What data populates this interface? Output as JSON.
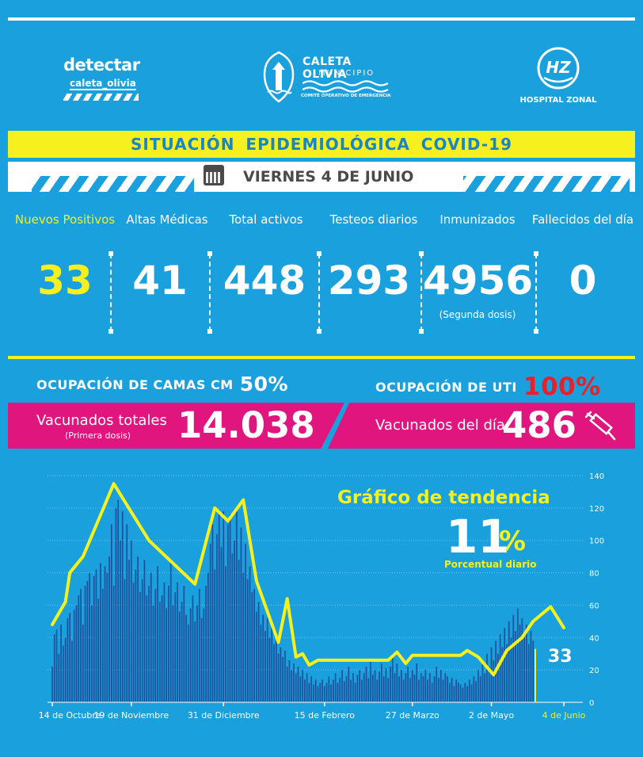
{
  "logos": {
    "detectar_main": "detectar",
    "detectar_sub": "caleta_olivia",
    "caleta_name": "CALETA OLIVIA",
    "caleta_sub": "MUNICIPIO",
    "caleta_committee": "COMITÉ OPERATIVO DE EMERGENCIA",
    "hospital": "HOSPITAL ZONAL"
  },
  "header": {
    "title": "SITUACIÓN EPIDEMIOLÓGICA COVID-19",
    "date": "VIERNES 4 DE JUNIO"
  },
  "stats": [
    {
      "label": "Nuevos Positivos",
      "value": "33"
    },
    {
      "label": "Altas Médicas",
      "value": "41"
    },
    {
      "label": "Total activos",
      "value": "448"
    },
    {
      "label": "Testeos diarios",
      "value": "293"
    },
    {
      "label": "Inmunizados",
      "value": "4956",
      "note": "(Segunda dosis)"
    },
    {
      "label": "Fallecidos del día",
      "value": "0"
    }
  ],
  "occupancy": {
    "camas_label": "OCUPACIÓN DE CAMAS CM",
    "camas_value": "50%",
    "uti_label": "OCUPACIÓN DE UTI",
    "uti_value": "100%"
  },
  "vaccines": {
    "total_label": "Vacunados totales",
    "total_note": "(Primera dosis)",
    "total_value": "14.038",
    "day_label": "Vacunados del día",
    "day_value": "486"
  },
  "colors": {
    "background": "#1aa0dc",
    "yellow": "#f5f01e",
    "pink": "#e0157e",
    "red": "#e8202a",
    "bars": "#1d4f9a",
    "trend": "#f5f01e"
  },
  "chart_data": {
    "type": "bar",
    "title": "Gráfico de tendencia",
    "trend_value": "11",
    "trend_unit": "%",
    "trend_sub": "Porcentual diario",
    "last_value_label": "33",
    "ylim": [
      0,
      140
    ],
    "yticks": [
      0,
      20,
      40,
      60,
      80,
      100,
      120,
      140
    ],
    "xticks": [
      {
        "label": "14 de Octubre",
        "day": 0
      },
      {
        "label": "19 de Noviembre",
        "day": 36
      },
      {
        "label": "31 de Diciembre",
        "day": 78
      },
      {
        "label": "15 de Febrero",
        "day": 124
      },
      {
        "label": "27 de Marzo",
        "day": 164
      },
      {
        "label": "2 de Mayo",
        "day": 200
      },
      {
        "label": "4 de Junio",
        "day": 233,
        "highlight": true
      }
    ],
    "daily_cases": [
      22,
      42,
      45,
      30,
      48,
      35,
      40,
      52,
      55,
      38,
      57,
      60,
      66,
      70,
      48,
      72,
      75,
      80,
      60,
      78,
      82,
      64,
      86,
      70,
      84,
      80,
      90,
      110,
      72,
      120,
      125,
      100,
      118,
      76,
      110,
      88,
      100,
      74,
      82,
      90,
      68,
      76,
      88,
      66,
      72,
      80,
      60,
      70,
      84,
      62,
      66,
      74,
      58,
      72,
      86,
      60,
      68,
      74,
      56,
      62,
      72,
      54,
      48,
      58,
      66,
      50,
      60,
      70,
      52,
      58,
      72,
      80,
      98,
      110,
      82,
      104,
      118,
      96,
      118,
      84,
      110,
      116,
      92,
      100,
      118,
      88,
      108,
      80,
      98,
      76,
      84,
      68,
      70,
      56,
      62,
      48,
      54,
      44,
      52,
      40,
      48,
      36,
      40,
      30,
      34,
      28,
      32,
      22,
      26,
      20,
      24,
      18,
      22,
      16,
      20,
      14,
      18,
      12,
      16,
      11,
      14,
      10,
      12,
      14,
      10,
      12,
      16,
      11,
      14,
      18,
      12,
      15,
      20,
      13,
      16,
      22,
      14,
      18,
      12,
      17,
      20,
      14,
      18,
      22,
      15,
      26,
      17,
      20,
      14,
      19,
      24,
      16,
      21,
      15,
      22,
      30,
      18,
      24,
      16,
      20,
      14,
      18,
      22,
      15,
      20,
      17,
      24,
      14,
      18,
      16,
      20,
      14,
      18,
      12,
      16,
      22,
      15,
      20,
      14,
      18,
      16,
      12,
      15,
      10,
      14,
      12,
      11,
      9,
      12,
      10,
      14,
      11,
      16,
      13,
      20,
      16,
      24,
      18,
      30,
      22,
      34,
      26,
      38,
      30,
      42,
      34,
      46,
      36,
      50,
      40,
      54,
      44,
      58,
      48,
      52,
      40,
      48,
      36,
      44,
      38,
      33
    ],
    "trend_line": [
      {
        "day": 0,
        "value": 48
      },
      {
        "day": 6,
        "value": 62
      },
      {
        "day": 8,
        "value": 80
      },
      {
        "day": 14,
        "value": 90
      },
      {
        "day": 28,
        "value": 135
      },
      {
        "day": 44,
        "value": 100
      },
      {
        "day": 65,
        "value": 73
      },
      {
        "day": 74,
        "value": 120
      },
      {
        "day": 80,
        "value": 112
      },
      {
        "day": 87,
        "value": 125
      },
      {
        "day": 93,
        "value": 75
      },
      {
        "day": 103,
        "value": 37
      },
      {
        "day": 107,
        "value": 64
      },
      {
        "day": 111,
        "value": 28
      },
      {
        "day": 114,
        "value": 30
      },
      {
        "day": 117,
        "value": 23
      },
      {
        "day": 121,
        "value": 26
      },
      {
        "day": 138,
        "value": 26
      },
      {
        "day": 153,
        "value": 26
      },
      {
        "day": 157,
        "value": 31
      },
      {
        "day": 161,
        "value": 24
      },
      {
        "day": 164,
        "value": 29
      },
      {
        "day": 173,
        "value": 29
      },
      {
        "day": 186,
        "value": 29
      },
      {
        "day": 189,
        "value": 32
      },
      {
        "day": 194,
        "value": 28
      },
      {
        "day": 201,
        "value": 17
      },
      {
        "day": 207,
        "value": 32
      },
      {
        "day": 214,
        "value": 40
      },
      {
        "day": 219,
        "value": 50
      },
      {
        "day": 227,
        "value": 59
      },
      {
        "day": 233,
        "value": 46
      }
    ]
  }
}
